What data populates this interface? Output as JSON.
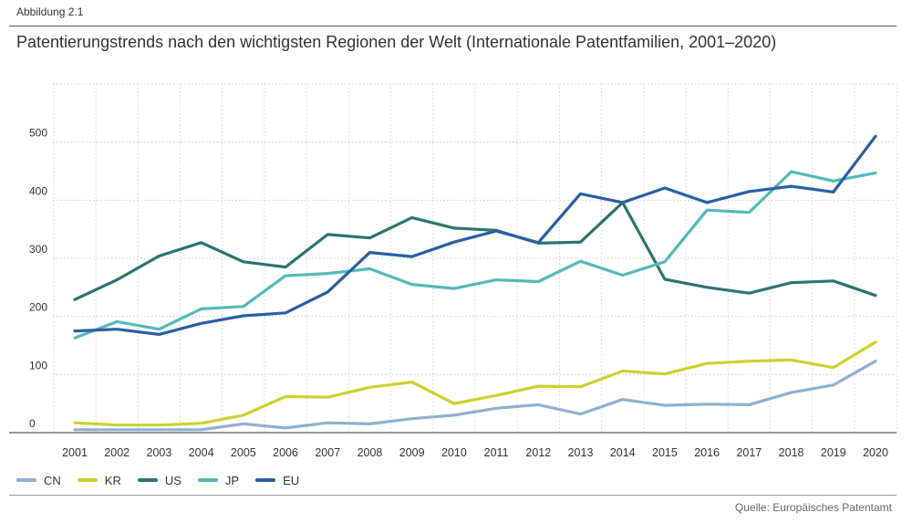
{
  "figure_label": "Abbildung 2.1",
  "title": "Patentierungstrends nach den wichtigsten Regionen der Welt (Internationale Patentfamilien, 2001–2020)",
  "source": "Quelle: Europäisches Patentamt",
  "chart_data": {
    "type": "line",
    "title": "Patentierungstrends nach den wichtigsten Regionen der Welt (Internationale Patentfamilien, 2001–2020)",
    "xlabel": "",
    "ylabel": "",
    "ylim": [
      0,
      600
    ],
    "y_ticks": [
      0,
      100,
      200,
      300,
      400,
      500
    ],
    "grid": true,
    "legend_position": "bottom-left",
    "x": [
      2001,
      2002,
      2003,
      2004,
      2005,
      2006,
      2007,
      2008,
      2009,
      2010,
      2011,
      2012,
      2013,
      2014,
      2015,
      2016,
      2017,
      2018,
      2019,
      2020
    ],
    "series": [
      {
        "name": "CN",
        "color": "#8fb0d2",
        "values": [
          5,
          5,
          5,
          5,
          15,
          8,
          17,
          15,
          24,
          30,
          42,
          48,
          32,
          57,
          47,
          49,
          48,
          69,
          82,
          123
        ]
      },
      {
        "name": "KR",
        "color": "#cbd22e",
        "values": [
          17,
          13,
          13,
          16,
          30,
          62,
          61,
          78,
          87,
          50,
          64,
          80,
          79,
          106,
          101,
          119,
          123,
          125,
          112,
          156
        ]
      },
      {
        "name": "US",
        "color": "#2e7470",
        "values": [
          229,
          263,
          304,
          327,
          294,
          285,
          341,
          335,
          370,
          352,
          348,
          326,
          328,
          396,
          264,
          250,
          240,
          258,
          261,
          236
        ]
      },
      {
        "name": "JP",
        "color": "#55b9bb",
        "values": [
          163,
          191,
          178,
          213,
          217,
          270,
          274,
          282,
          255,
          248,
          263,
          260,
          295,
          271,
          294,
          383,
          379,
          449,
          433,
          447
        ]
      },
      {
        "name": "EU",
        "color": "#2b5fa3",
        "values": [
          175,
          178,
          169,
          188,
          201,
          206,
          242,
          310,
          303,
          328,
          347,
          327,
          411,
          396,
          421,
          396,
          415,
          424,
          414,
          510
        ]
      }
    ]
  }
}
